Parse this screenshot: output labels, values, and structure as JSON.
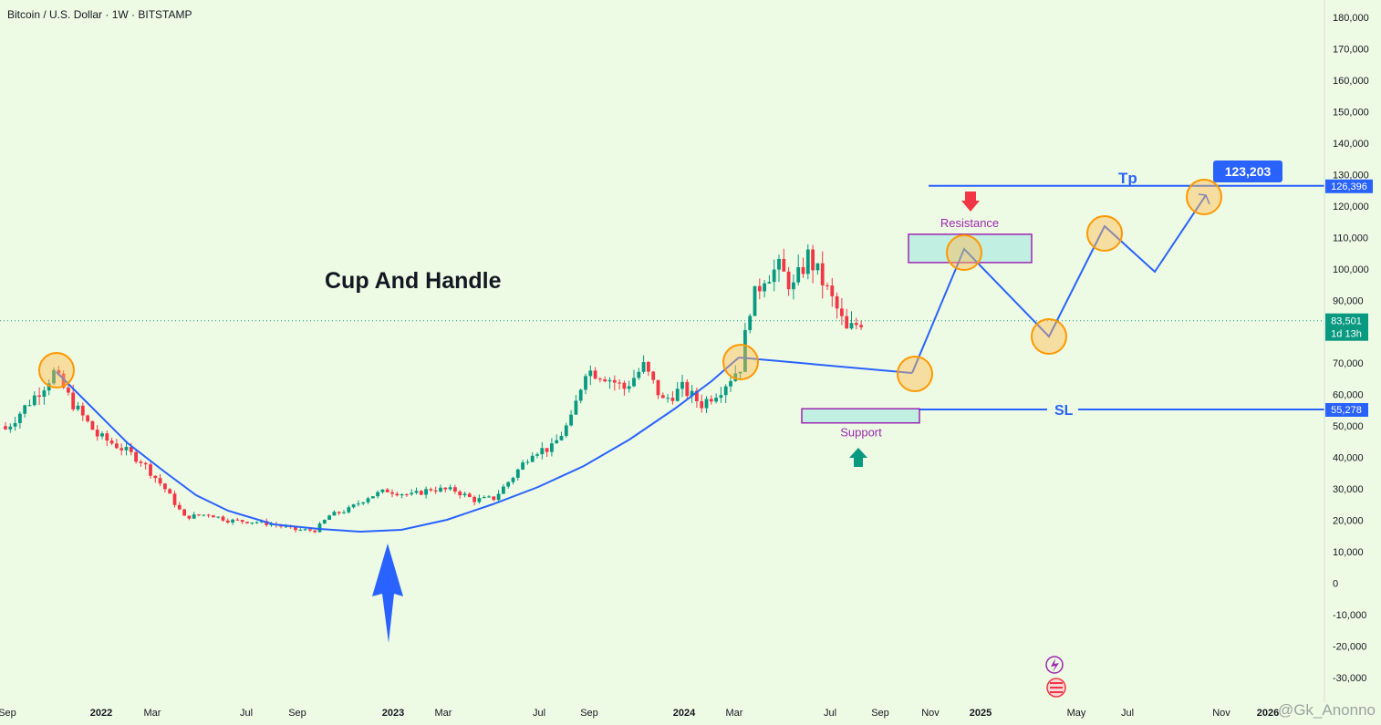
{
  "header": {
    "title": "Bitcoin / U.S. Dollar · 1W · BITSTAMP"
  },
  "watermark": "@Gk_Anonno",
  "colors": {
    "background": "#eefbe4",
    "up": "#089981",
    "down": "#f23645",
    "trend": "#2962ff",
    "box": "#9c27b0",
    "circle": "#ff9800",
    "axis_text": "#131722"
  },
  "chart_data": {
    "type": "candlestick",
    "title": "Cup And Handle",
    "interval": "1W",
    "exchange": "BITSTAMP",
    "ylim": [
      -35000,
      185000
    ],
    "y_ticks": [
      180000,
      170000,
      160000,
      150000,
      140000,
      130000,
      120000,
      110000,
      100000,
      90000,
      80000,
      70000,
      60000,
      50000,
      40000,
      30000,
      20000,
      10000,
      0,
      -10000,
      -20000,
      -30000
    ],
    "y_tick_labels": [
      "180,000",
      "170,000",
      "160,000",
      "150,000",
      "140,000",
      "130,000",
      "120,000",
      "110,000",
      "100,000",
      "90,000",
      "",
      "70,000",
      "60,000",
      "50,000",
      "40,000",
      "30,000",
      "20,000",
      "10,000",
      "0",
      "-10,000",
      "-20,000",
      "-30,000"
    ],
    "x_labels": [
      "Sep",
      "2022",
      "Mar",
      "Jul",
      "Sep",
      "2023",
      "Mar",
      "Jul",
      "Sep",
      "2024",
      "Mar",
      "Jul",
      "Sep",
      "Nov",
      "2025",
      "May",
      "Jul",
      "Nov",
      "2026"
    ],
    "bold_x_labels": [
      "2022",
      "2023",
      "2024",
      "2025",
      "2026"
    ],
    "price_markers": [
      {
        "label": "126,396",
        "value": 126396
      },
      {
        "label": "83,501",
        "sublabel": "1d 13h",
        "value": 83501
      },
      {
        "label": "55,278",
        "value": 55278
      }
    ],
    "target_label": "123,203",
    "target_value": 123203,
    "levels": [
      {
        "label": "Tp",
        "value": 126396
      },
      {
        "label": "SL",
        "value": 55278
      }
    ],
    "zones": [
      {
        "label": "Resistance",
        "low": 102000,
        "high": 111000
      },
      {
        "label": "Support",
        "low": 51000,
        "high": 55500
      }
    ],
    "anchors": [
      {
        "time": 0.0,
        "close": 49000
      },
      {
        "time": 8.0,
        "close": 63000
      },
      {
        "time": 10.0,
        "close": 67000
      },
      {
        "time": 14.0,
        "close": 57000
      },
      {
        "time": 19.0,
        "close": 47000
      },
      {
        "time": 24.0,
        "close": 43000
      },
      {
        "time": 28.0,
        "close": 39000
      },
      {
        "time": 33.0,
        "close": 30000
      },
      {
        "time": 37.0,
        "close": 21000
      },
      {
        "time": 42.0,
        "close": 22000
      },
      {
        "time": 46.0,
        "close": 20000
      },
      {
        "time": 52.0,
        "close": 19500
      },
      {
        "time": 56.0,
        "close": 18500
      },
      {
        "time": 60.0,
        "close": 17000
      },
      {
        "time": 64.0,
        "close": 16800
      },
      {
        "time": 67.0,
        "close": 21500
      },
      {
        "time": 71.0,
        "close": 23500
      },
      {
        "time": 75.0,
        "close": 27500
      },
      {
        "time": 79.0,
        "close": 29500
      },
      {
        "time": 84.0,
        "close": 28000
      },
      {
        "time": 88.0,
        "close": 30000
      },
      {
        "time": 93.0,
        "close": 29500
      },
      {
        "time": 97.0,
        "close": 26500
      },
      {
        "time": 101.0,
        "close": 27000
      },
      {
        "time": 105.0,
        "close": 34000
      },
      {
        "time": 109.0,
        "close": 42000
      },
      {
        "time": 113.0,
        "close": 43000
      },
      {
        "time": 117.0,
        "close": 52000
      },
      {
        "time": 120.0,
        "close": 68000
      },
      {
        "time": 124.0,
        "close": 66000
      },
      {
        "time": 128.0,
        "close": 62000
      },
      {
        "time": 132.0,
        "close": 69000
      },
      {
        "time": 136.0,
        "close": 58000
      },
      {
        "time": 140.0,
        "close": 62000
      },
      {
        "time": 144.0,
        "close": 57000
      },
      {
        "time": 148.0,
        "close": 62000
      },
      {
        "time": 152.0,
        "close": 69000
      },
      {
        "time": 154.0,
        "close": 88000
      },
      {
        "time": 157.0,
        "close": 98000
      },
      {
        "time": 160.0,
        "close": 100000
      },
      {
        "time": 163.0,
        "close": 94000
      },
      {
        "time": 166.0,
        "close": 104000
      },
      {
        "time": 169.0,
        "close": 96000
      },
      {
        "time": 172.0,
        "close": 87000
      },
      {
        "time": 174.0,
        "close": 80000
      },
      {
        "time": 177.0,
        "close": 83501
      }
    ],
    "annotations": [
      {
        "label": "Cup And Handle"
      },
      {
        "label": "Resistance"
      },
      {
        "label": "Support"
      },
      {
        "label": "Tp"
      },
      {
        "label": "SL"
      }
    ]
  }
}
